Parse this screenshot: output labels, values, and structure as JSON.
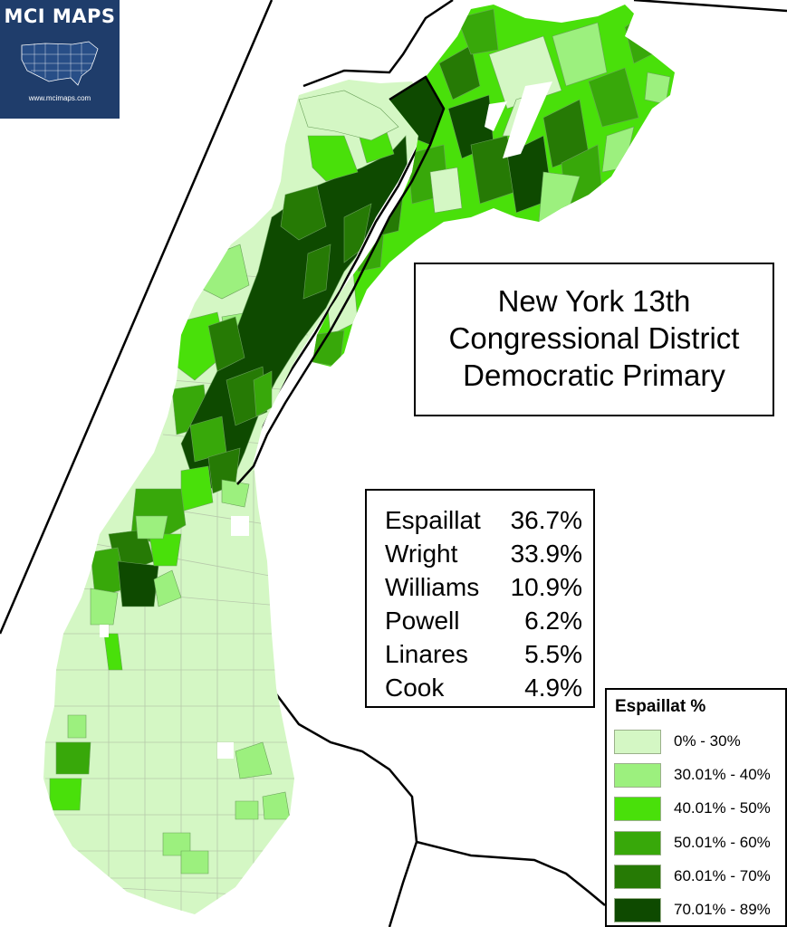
{
  "logo": {
    "name": "MCI MAPS",
    "url": "www.mcimaps.com"
  },
  "title": {
    "line1": "New York 13th",
    "line2": "Congressional District",
    "line3": "Democratic Primary"
  },
  "results": [
    {
      "name": "Espaillat",
      "pct": "36.7%"
    },
    {
      "name": "Wright",
      "pct": "33.9%"
    },
    {
      "name": "Williams",
      "pct": "10.9%"
    },
    {
      "name": "Powell",
      "pct": "6.2%"
    },
    {
      "name": "Linares",
      "pct": "5.5%"
    },
    {
      "name": "Cook",
      "pct": "4.9%"
    }
  ],
  "legend": {
    "title": "Espaillat %",
    "items": [
      {
        "label": "0% - 30%",
        "color": "#d4f7c4"
      },
      {
        "label": "30.01% - 40%",
        "color": "#9cf07e"
      },
      {
        "label": "40.01% - 50%",
        "color": "#49e00a"
      },
      {
        "label": "50.01% - 60%",
        "color": "#38a80a"
      },
      {
        "label": "60.01% - 70%",
        "color": "#267a05"
      },
      {
        "label": "70.01% - 89%",
        "color": "#0e4a00"
      }
    ]
  }
}
